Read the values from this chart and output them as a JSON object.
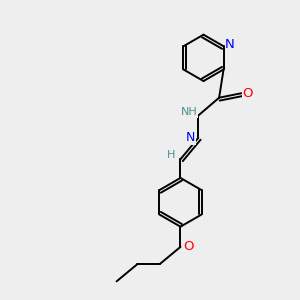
{
  "bg_color": "#eeeeee",
  "atom_color_N": "#0000ff",
  "atom_color_O": "#ff0000",
  "atom_color_C": "#000000",
  "atom_color_H": "#4a9090",
  "bond_color": "#000000",
  "bond_lw": 1.4,
  "font_size_atom": 8.5,
  "fig_size": [
    3.0,
    3.0
  ],
  "dpi": 100,
  "xlim": [
    0,
    10
  ],
  "ylim": [
    0,
    10
  ]
}
